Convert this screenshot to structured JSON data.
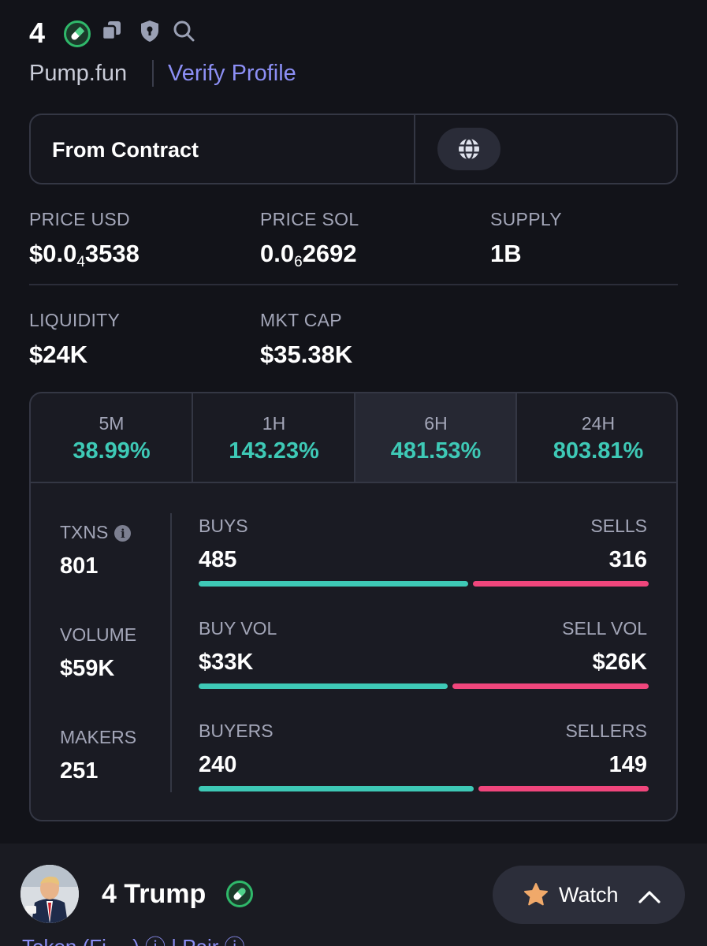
{
  "header": {
    "symbol": "4",
    "platform": "Pump.fun",
    "verify_label": "Verify Profile"
  },
  "contract": {
    "label": "From Contract"
  },
  "stats": {
    "price_usd": {
      "label": "PRICE USD",
      "prefix": "$0.0",
      "sub": "4",
      "rest": "3538"
    },
    "price_sol": {
      "label": "PRICE SOL",
      "prefix": "0.0",
      "sub": "6",
      "rest": "2692"
    },
    "supply": {
      "label": "SUPPLY",
      "value": "1B"
    },
    "liquidity": {
      "label": "LIQUIDITY",
      "value": "$24K"
    },
    "mkt_cap": {
      "label": "MKT CAP",
      "value": "$35.38K"
    }
  },
  "timeframes": [
    {
      "label": "5M",
      "change": "38.99%"
    },
    {
      "label": "1H",
      "change": "143.23%"
    },
    {
      "label": "6H",
      "change": "481.53%"
    },
    {
      "label": "24H",
      "change": "803.81%"
    }
  ],
  "metrics": {
    "txns": {
      "label": "TXNS",
      "value": "801"
    },
    "volume": {
      "label": "VOLUME",
      "value": "$59K"
    },
    "makers": {
      "label": "MAKERS",
      "value": "251"
    },
    "buys": {
      "label": "BUYS",
      "value": "485",
      "fraction": 0.605
    },
    "sells": {
      "label": "SELLS",
      "value": "316"
    },
    "buy_vol": {
      "label": "BUY VOL",
      "value": "$33K",
      "fraction": 0.559
    },
    "sell_vol": {
      "label": "SELL VOL",
      "value": "$26K"
    },
    "buyers": {
      "label": "BUYERS",
      "value": "240",
      "fraction": 0.617
    },
    "sellers": {
      "label": "SELLERS",
      "value": "149"
    }
  },
  "bottom": {
    "name": "4 Trump",
    "watch_label": "Watch",
    "cut_text": "Token (Fi… ) ⓘ  |  Pair ⓘ"
  },
  "colors": {
    "buy": "#3ec9b6",
    "sell": "#f0467c",
    "accent": "#8c8ff5"
  },
  "icons": {
    "pill": "pill-icon",
    "copy": "copy-icon",
    "shield": "shield-icon",
    "search": "search-icon",
    "globe": "globe-icon",
    "info": "info-icon",
    "star": "star-icon",
    "chevron": "chevron-up-icon"
  }
}
